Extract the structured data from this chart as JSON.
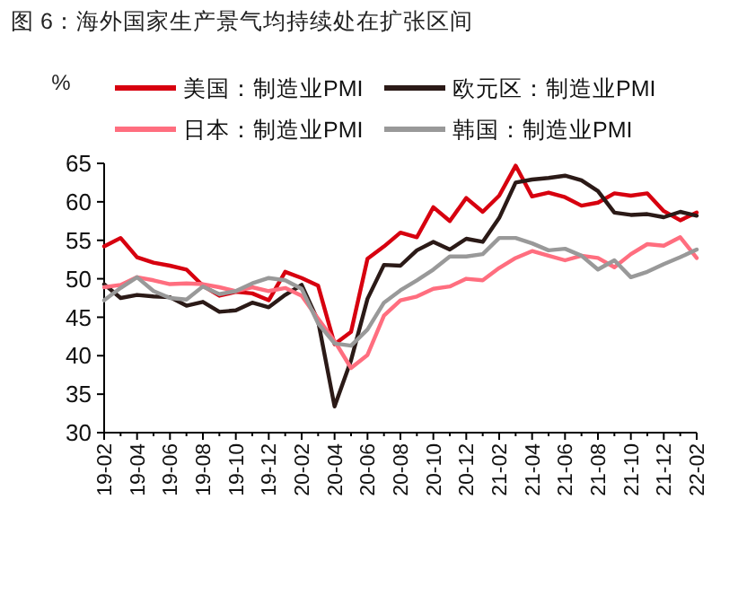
{
  "chart_data": {
    "type": "line",
    "title": "图 6：海外国家生产景气均持续处在扩张区间",
    "ylabel": "%",
    "categories": [
      "19-02",
      null,
      "19-04",
      null,
      "19-06",
      null,
      "19-08",
      null,
      "19-10",
      null,
      "19-12",
      null,
      "20-02",
      null,
      "20-04",
      null,
      "20-06",
      null,
      "20-08",
      null,
      "20-10",
      null,
      "20-12",
      null,
      "21-02",
      null,
      "21-04",
      null,
      "21-06",
      null,
      "21-08",
      null,
      "21-10",
      null,
      "21-12",
      null,
      "22-02"
    ],
    "series": [
      {
        "name": "美国：制造业PMI",
        "color": "#d7000f",
        "values": [
          54.2,
          55.3,
          52.8,
          52.1,
          51.7,
          51.2,
          49.1,
          47.8,
          48.3,
          48.1,
          47.2,
          50.9,
          50.1,
          49.1,
          41.5,
          43.1,
          52.6,
          54.2,
          56.0,
          55.4,
          59.3,
          57.5,
          60.5,
          58.7,
          60.8,
          64.7,
          60.7,
          61.2,
          60.6,
          59.5,
          59.9,
          61.1,
          60.8,
          61.1,
          58.8,
          57.6,
          58.6
        ]
      },
      {
        "name": "欧元区：制造业PMI",
        "color": "#2b1a17",
        "values": [
          49.3,
          47.5,
          47.9,
          47.7,
          47.6,
          46.5,
          47.0,
          45.7,
          45.9,
          46.9,
          46.3,
          47.9,
          49.2,
          44.5,
          33.4,
          39.4,
          47.4,
          51.8,
          51.7,
          53.7,
          54.8,
          53.8,
          55.2,
          54.8,
          57.9,
          62.5,
          62.9,
          63.1,
          63.4,
          62.8,
          61.4,
          58.6,
          58.3,
          58.4,
          58.0,
          58.7,
          58.2
        ]
      },
      {
        "name": "日本：制造业PMI",
        "color": "#ff6e7f",
        "values": [
          48.9,
          49.2,
          50.2,
          49.8,
          49.3,
          49.4,
          49.3,
          48.9,
          48.4,
          48.9,
          48.4,
          48.8,
          47.8,
          44.8,
          41.9,
          38.4,
          40.1,
          45.2,
          47.2,
          47.7,
          48.7,
          49.0,
          50.0,
          49.8,
          51.4,
          52.7,
          53.6,
          53.0,
          52.4,
          53.0,
          52.7,
          51.5,
          53.2,
          54.5,
          54.3,
          55.4,
          52.7
        ]
      },
      {
        "name": "韩国：制造业PMI",
        "color": "#999999",
        "values": [
          47.2,
          48.8,
          50.2,
          48.4,
          47.5,
          47.3,
          49.0,
          48.0,
          48.4,
          49.4,
          50.1,
          49.8,
          48.7,
          44.2,
          41.6,
          41.3,
          43.4,
          46.9,
          48.5,
          49.8,
          51.2,
          52.9,
          52.9,
          53.2,
          55.3,
          55.3,
          54.6,
          53.7,
          53.9,
          53.0,
          51.2,
          52.4,
          50.2,
          50.9,
          51.9,
          52.8,
          53.8
        ]
      }
    ],
    "ylim": [
      30,
      65
    ],
    "yticks": [
      30,
      35,
      40,
      45,
      50,
      55,
      60,
      65
    ],
    "legend": "top",
    "grid": false
  }
}
